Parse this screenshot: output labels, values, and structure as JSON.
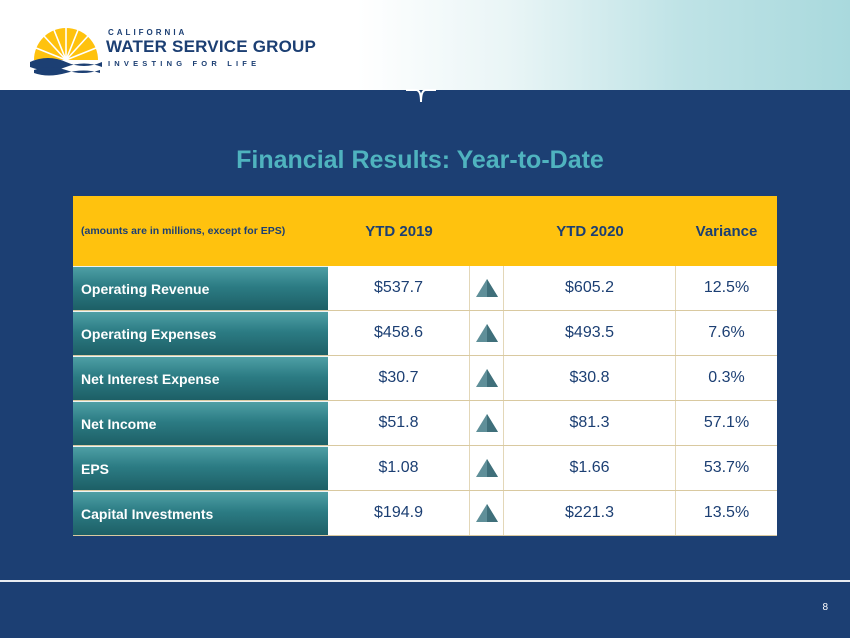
{
  "logo": {
    "line1": "CALIFORNIA",
    "line2": "WATER SERVICE GROUP",
    "tagline": "INVESTING FOR LIFE",
    "colors": {
      "sun": "#ffc20e",
      "wave": "#1c3f73"
    }
  },
  "slide": {
    "title": "Financial Results: Year-to-Date",
    "page_number": "8"
  },
  "table": {
    "note": "(amounts are in millions, except for EPS)",
    "headers": {
      "ytd2019": "YTD 2019",
      "ytd2020": "YTD 2020",
      "variance": "Variance"
    },
    "rows": [
      {
        "label": "Operating Revenue",
        "ytd2019": "$537.7",
        "ytd2020": "$605.2",
        "variance": "12.5%",
        "trend": "up-arrow-icon"
      },
      {
        "label": "Operating Expenses",
        "ytd2019": "$458.6",
        "ytd2020": "$493.5",
        "variance": "7.6%",
        "trend": "up-arrow-icon"
      },
      {
        "label": "Net Interest Expense",
        "ytd2019": "$30.7",
        "ytd2020": "$30.8",
        "variance": "0.3%",
        "trend": "up-arrow-icon"
      },
      {
        "label": "Net Income",
        "ytd2019": "$51.8",
        "ytd2020": "$81.3",
        "variance": "57.1%",
        "trend": "up-arrow-icon"
      },
      {
        "label": "EPS",
        "ytd2019": "$1.08",
        "ytd2020": "$1.66",
        "variance": "53.7%",
        "trend": "up-arrow-icon"
      },
      {
        "label": "Capital Investments",
        "ytd2019": "$194.9",
        "ytd2020": "$221.3",
        "variance": "13.5%",
        "trend": "up-arrow-icon"
      }
    ]
  },
  "colors": {
    "background": "#1c3f73",
    "title": "#4fb3bf",
    "header_band": "#ffc20e",
    "row_label": "#2c7c84"
  }
}
